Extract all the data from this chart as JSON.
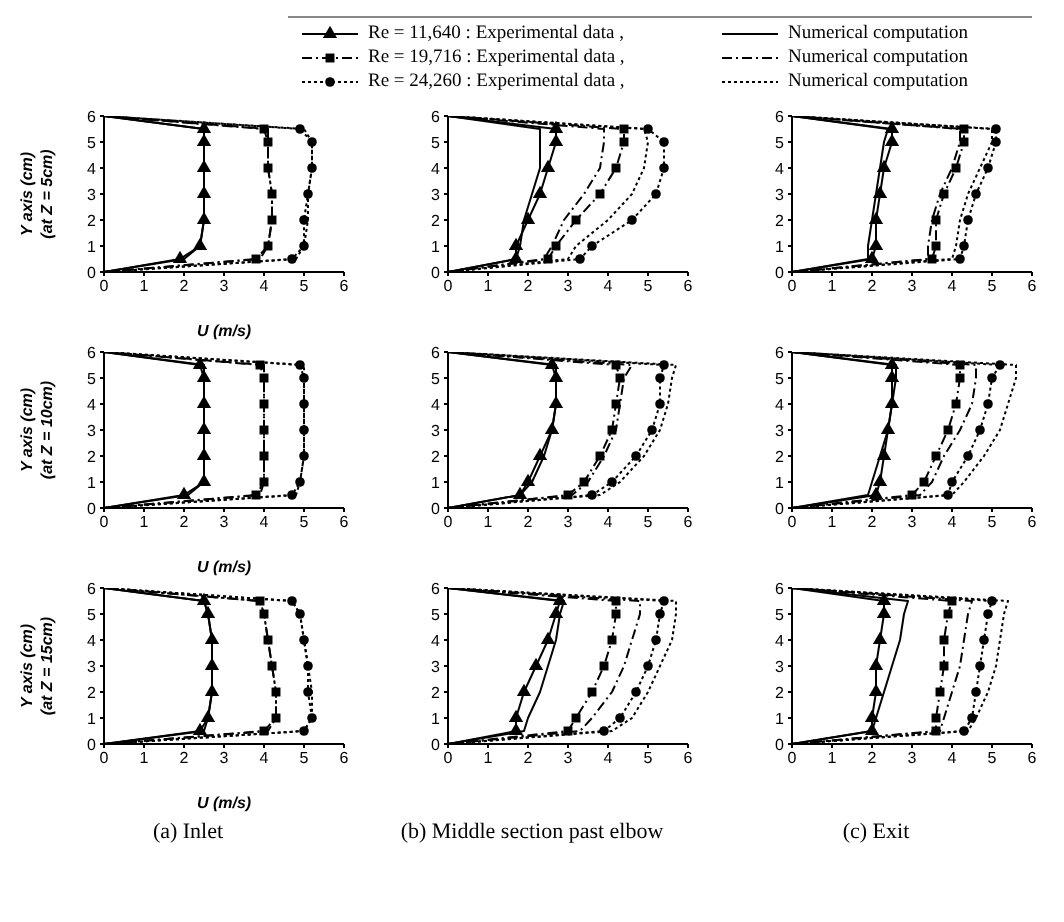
{
  "chart_data": [
    {
      "type": "line",
      "ylabel": "Y axis (cm)\n(at Z = 5cm)",
      "xlabel": "U (m/s)",
      "xlim": [
        0,
        6
      ],
      "ylim": [
        0,
        6
      ],
      "xticks": [
        0,
        1,
        2,
        3,
        4,
        5,
        6
      ],
      "yticks": [
        0,
        1,
        2,
        3,
        4,
        5,
        6
      ],
      "legend": "top",
      "series": [
        {
          "name": "Re = 11,640 : Experimental data ,",
          "color": "#000000",
          "marker": "triangle",
          "line_style": "solid",
          "x": [
            0,
            1.9,
            2.4,
            2.5,
            2.5,
            2.5,
            2.5,
            2.5,
            0
          ],
          "values": [
            0,
            0.5,
            1,
            2,
            3,
            4,
            5,
            5.5,
            6
          ]
        },
        {
          "name": "Numerical computation",
          "color": "#000000",
          "marker": "none",
          "line_style": "solid",
          "x": [
            0,
            2.0,
            2.4,
            2.5,
            2.5,
            2.5,
            2.5,
            2.5,
            0
          ],
          "values": [
            0,
            0.5,
            1,
            2,
            3,
            4,
            5,
            5.5,
            6
          ]
        },
        {
          "name": "Re = 19,716 : Experimental data ,",
          "color": "#000000",
          "marker": "square",
          "line_style": "dashed",
          "x": [
            0,
            3.8,
            4.1,
            4.2,
            4.2,
            4.1,
            4.1,
            4.0,
            0
          ],
          "values": [
            0,
            0.5,
            1,
            2,
            3,
            4,
            5,
            5.5,
            6
          ]
        },
        {
          "name": "Numerical computation",
          "color": "#000000",
          "marker": "none",
          "line_style": "dashed",
          "x": [
            0,
            3.9,
            4.1,
            4.2,
            4.2,
            4.1,
            4.1,
            4.1,
            0
          ],
          "values": [
            0,
            0.5,
            1,
            2,
            3,
            4,
            5,
            5.5,
            6
          ]
        },
        {
          "name": "Re = 24,260 : Experimental data ,",
          "color": "#000000",
          "marker": "circle",
          "line_style": "dotted",
          "x": [
            0,
            4.7,
            5.0,
            5.0,
            5.1,
            5.2,
            5.2,
            4.9,
            0
          ],
          "values": [
            0,
            0.5,
            1,
            2,
            3,
            4,
            5,
            5.5,
            6
          ]
        },
        {
          "name": "Numerical computation",
          "color": "#000000",
          "marker": "none",
          "line_style": "dotted",
          "x": [
            0,
            4.8,
            5.0,
            5.1,
            5.1,
            5.2,
            5.2,
            5.0,
            0
          ],
          "values": [
            0,
            0.5,
            1,
            2,
            3,
            4,
            5,
            5.5,
            6
          ]
        }
      ]
    },
    {
      "type": "line",
      "xlim": [
        0,
        6
      ],
      "ylim": [
        0,
        6
      ],
      "xticks": [
        0,
        1,
        2,
        3,
        4,
        5,
        6
      ],
      "yticks": [
        0,
        1,
        2,
        3,
        4,
        5,
        6
      ],
      "series": [
        {
          "color": "#000000",
          "marker": "triangle",
          "line_style": "solid",
          "x": [
            0,
            1.7,
            1.7,
            2.0,
            2.3,
            2.5,
            2.7,
            2.7,
            0
          ],
          "values": [
            0,
            0.5,
            1,
            2,
            3,
            4,
            5,
            5.5,
            6
          ]
        },
        {
          "color": "#000000",
          "marker": "none",
          "line_style": "solid",
          "x": [
            0,
            1.7,
            1.8,
            1.9,
            2.1,
            2.3,
            2.3,
            2.3,
            0
          ],
          "values": [
            0,
            0.5,
            1,
            2,
            3,
            4,
            5,
            5.5,
            6
          ]
        },
        {
          "color": "#000000",
          "marker": "square",
          "line_style": "dashed",
          "x": [
            0,
            2.5,
            2.7,
            3.2,
            3.8,
            4.2,
            4.4,
            4.4,
            0
          ],
          "values": [
            0,
            0.5,
            1,
            2,
            3,
            4,
            5,
            5.5,
            6
          ]
        },
        {
          "color": "#000000",
          "marker": "none",
          "line_style": "dashed",
          "x": [
            0,
            2.4,
            2.6,
            2.9,
            3.4,
            3.8,
            3.9,
            3.9,
            0
          ],
          "values": [
            0,
            0.5,
            1,
            2,
            3,
            4,
            5,
            5.5,
            6
          ]
        },
        {
          "color": "#000000",
          "marker": "circle",
          "line_style": "dotted",
          "x": [
            0,
            3.3,
            3.6,
            4.6,
            5.2,
            5.4,
            5.4,
            5.0,
            0
          ],
          "values": [
            0,
            0.5,
            1,
            2,
            3,
            4,
            5,
            5.5,
            6
          ]
        },
        {
          "color": "#000000",
          "marker": "none",
          "line_style": "dotted",
          "x": [
            0,
            3.0,
            3.2,
            4.0,
            4.6,
            4.9,
            5.0,
            4.9,
            0
          ],
          "values": [
            0,
            0.5,
            1,
            2,
            3,
            4,
            5,
            5.5,
            6
          ]
        }
      ]
    },
    {
      "type": "line",
      "xlim": [
        0,
        6
      ],
      "ylim": [
        0,
        6
      ],
      "xticks": [
        0,
        1,
        2,
        3,
        4,
        5,
        6
      ],
      "yticks": [
        0,
        1,
        2,
        3,
        4,
        5,
        6
      ],
      "series": [
        {
          "color": "#000000",
          "marker": "triangle",
          "line_style": "solid",
          "x": [
            0,
            2.0,
            2.1,
            2.1,
            2.2,
            2.3,
            2.5,
            2.5,
            0
          ],
          "values": [
            0,
            0.5,
            1,
            2,
            3,
            4,
            5,
            5.5,
            6
          ]
        },
        {
          "color": "#000000",
          "marker": "none",
          "line_style": "solid",
          "x": [
            0,
            1.9,
            1.9,
            2.0,
            2.1,
            2.2,
            2.3,
            2.4,
            0
          ],
          "values": [
            0,
            0.5,
            1,
            2,
            3,
            4,
            5,
            5.5,
            6
          ]
        },
        {
          "color": "#000000",
          "marker": "square",
          "line_style": "dashed",
          "x": [
            0,
            3.5,
            3.6,
            3.6,
            3.8,
            4.1,
            4.3,
            4.3,
            0
          ],
          "values": [
            0,
            0.5,
            1,
            2,
            3,
            4,
            5,
            5.5,
            6
          ]
        },
        {
          "color": "#000000",
          "marker": "none",
          "line_style": "dashed",
          "x": [
            0,
            3.4,
            3.4,
            3.5,
            3.7,
            4.0,
            4.2,
            4.2,
            0
          ],
          "values": [
            0,
            0.5,
            1,
            2,
            3,
            4,
            5,
            5.5,
            6
          ]
        },
        {
          "color": "#000000",
          "marker": "circle",
          "line_style": "dotted",
          "x": [
            0,
            4.2,
            4.3,
            4.4,
            4.6,
            4.9,
            5.1,
            5.1,
            0
          ],
          "values": [
            0,
            0.5,
            1,
            2,
            3,
            4,
            5,
            5.5,
            6
          ]
        },
        {
          "color": "#000000",
          "marker": "none",
          "line_style": "dotted",
          "x": [
            0,
            4.0,
            4.1,
            4.2,
            4.4,
            4.7,
            5.0,
            5.0,
            0
          ],
          "values": [
            0,
            0.5,
            1,
            2,
            3,
            4,
            5,
            5.5,
            6
          ]
        }
      ]
    },
    {
      "type": "line",
      "ylabel": "Y axis (cm)\n(at Z = 10cm)",
      "xlabel": "U (m/s)",
      "xlim": [
        0,
        6
      ],
      "ylim": [
        0,
        6
      ],
      "xticks": [
        0,
        1,
        2,
        3,
        4,
        5,
        6
      ],
      "yticks": [
        0,
        1,
        2,
        3,
        4,
        5,
        6
      ],
      "series": [
        {
          "color": "#000000",
          "marker": "triangle",
          "line_style": "solid",
          "x": [
            0,
            2.0,
            2.5,
            2.5,
            2.5,
            2.5,
            2.5,
            2.4,
            0
          ],
          "values": [
            0,
            0.5,
            1,
            2,
            3,
            4,
            5,
            5.5,
            6
          ]
        },
        {
          "color": "#000000",
          "marker": "none",
          "line_style": "solid",
          "x": [
            0,
            2.1,
            2.5,
            2.5,
            2.5,
            2.5,
            2.5,
            2.5,
            0
          ],
          "values": [
            0,
            0.5,
            1,
            2,
            3,
            4,
            5,
            5.5,
            6
          ]
        },
        {
          "color": "#000000",
          "marker": "square",
          "line_style": "dashed",
          "x": [
            0,
            3.8,
            4.0,
            4.0,
            4.0,
            4.0,
            4.0,
            3.9,
            0
          ],
          "values": [
            0,
            0.5,
            1,
            2,
            3,
            4,
            5,
            5.5,
            6
          ]
        },
        {
          "color": "#000000",
          "marker": "none",
          "line_style": "dashed",
          "x": [
            0,
            3.9,
            4.0,
            4.0,
            4.0,
            4.0,
            4.0,
            4.0,
            0
          ],
          "values": [
            0,
            0.5,
            1,
            2,
            3,
            4,
            5,
            5.5,
            6
          ]
        },
        {
          "color": "#000000",
          "marker": "circle",
          "line_style": "dotted",
          "x": [
            0,
            4.7,
            4.9,
            5.0,
            5.0,
            5.0,
            5.0,
            4.9,
            0
          ],
          "values": [
            0,
            0.5,
            1,
            2,
            3,
            4,
            5,
            5.5,
            6
          ]
        },
        {
          "color": "#000000",
          "marker": "none",
          "line_style": "dotted",
          "x": [
            0,
            4.8,
            4.9,
            5.0,
            5.0,
            5.0,
            5.0,
            5.0,
            0
          ],
          "values": [
            0,
            0.5,
            1,
            2,
            3,
            4,
            5,
            5.5,
            6
          ]
        }
      ]
    },
    {
      "type": "line",
      "xlim": [
        0,
        6
      ],
      "ylim": [
        0,
        6
      ],
      "xticks": [
        0,
        1,
        2,
        3,
        4,
        5,
        6
      ],
      "yticks": [
        0,
        1,
        2,
        3,
        4,
        5,
        6
      ],
      "series": [
        {
          "color": "#000000",
          "marker": "triangle",
          "line_style": "solid",
          "x": [
            0,
            1.8,
            2.0,
            2.3,
            2.6,
            2.7,
            2.7,
            2.6,
            0
          ],
          "values": [
            0,
            0.5,
            1,
            2,
            3,
            4,
            5,
            5.5,
            6
          ]
        },
        {
          "color": "#000000",
          "marker": "none",
          "line_style": "solid",
          "x": [
            0,
            1.8,
            2.1,
            2.4,
            2.6,
            2.7,
            2.7,
            2.7,
            0
          ],
          "values": [
            0,
            0.5,
            1,
            2,
            3,
            4,
            5,
            5.5,
            6
          ]
        },
        {
          "color": "#000000",
          "marker": "square",
          "line_style": "dashed",
          "x": [
            0,
            3.0,
            3.4,
            3.8,
            4.1,
            4.2,
            4.3,
            4.2,
            0
          ],
          "values": [
            0,
            0.5,
            1,
            2,
            3,
            4,
            5,
            5.5,
            6
          ]
        },
        {
          "color": "#000000",
          "marker": "none",
          "line_style": "dashed",
          "x": [
            0,
            3.1,
            3.5,
            3.9,
            4.2,
            4.3,
            4.4,
            4.6,
            0
          ],
          "values": [
            0,
            0.5,
            1,
            2,
            3,
            4,
            5,
            5.5,
            6
          ]
        },
        {
          "color": "#000000",
          "marker": "circle",
          "line_style": "dotted",
          "x": [
            0,
            3.6,
            4.1,
            4.7,
            5.1,
            5.3,
            5.3,
            5.4,
            0
          ],
          "values": [
            0,
            0.5,
            1,
            2,
            3,
            4,
            5,
            5.5,
            6
          ]
        },
        {
          "color": "#000000",
          "marker": "none",
          "line_style": "dotted",
          "x": [
            0,
            3.8,
            4.3,
            4.9,
            5.3,
            5.5,
            5.6,
            5.7,
            0
          ],
          "values": [
            0,
            0.5,
            1,
            2,
            3,
            4,
            5,
            5.5,
            6
          ]
        }
      ]
    },
    {
      "type": "line",
      "xlim": [
        0,
        6
      ],
      "ylim": [
        0,
        6
      ],
      "xticks": [
        0,
        1,
        2,
        3,
        4,
        5,
        6
      ],
      "yticks": [
        0,
        1,
        2,
        3,
        4,
        5,
        6
      ],
      "series": [
        {
          "color": "#000000",
          "marker": "triangle",
          "line_style": "solid",
          "x": [
            0,
            2.1,
            2.2,
            2.3,
            2.4,
            2.5,
            2.5,
            2.5,
            0
          ],
          "values": [
            0,
            0.5,
            1,
            2,
            3,
            4,
            5,
            5.5,
            6
          ]
        },
        {
          "color": "#000000",
          "marker": "none",
          "line_style": "solid",
          "x": [
            0,
            1.9,
            2.0,
            2.2,
            2.4,
            2.5,
            2.6,
            2.6,
            0
          ],
          "values": [
            0,
            0.5,
            1,
            2,
            3,
            4,
            5,
            5.5,
            6
          ]
        },
        {
          "color": "#000000",
          "marker": "square",
          "line_style": "dashed",
          "x": [
            0,
            3.0,
            3.3,
            3.6,
            3.9,
            4.1,
            4.2,
            4.2,
            0
          ],
          "values": [
            0,
            0.5,
            1,
            2,
            3,
            4,
            5,
            5.5,
            6
          ]
        },
        {
          "color": "#000000",
          "marker": "none",
          "line_style": "dashed",
          "x": [
            0,
            3.2,
            3.5,
            3.8,
            4.2,
            4.5,
            4.6,
            4.6,
            0
          ],
          "values": [
            0,
            0.5,
            1,
            2,
            3,
            4,
            5,
            5.5,
            6
          ]
        },
        {
          "color": "#000000",
          "marker": "circle",
          "line_style": "dotted",
          "x": [
            0,
            3.9,
            4.0,
            4.4,
            4.7,
            4.9,
            5.0,
            5.2,
            0
          ],
          "values": [
            0,
            0.5,
            1,
            2,
            3,
            4,
            5,
            5.5,
            6
          ]
        },
        {
          "color": "#000000",
          "marker": "none",
          "line_style": "dotted",
          "x": [
            0,
            4.0,
            4.3,
            4.8,
            5.2,
            5.4,
            5.6,
            5.6,
            0
          ],
          "values": [
            0,
            0.5,
            1,
            2,
            3,
            4,
            5,
            5.5,
            6
          ]
        }
      ]
    },
    {
      "type": "line",
      "ylabel": "Y axis (cm)\n(at Z = 15cm)",
      "xlabel": "U (m/s)",
      "xlim": [
        0,
        6
      ],
      "ylim": [
        0,
        6
      ],
      "xticks": [
        0,
        1,
        2,
        3,
        4,
        5,
        6
      ],
      "yticks": [
        0,
        1,
        2,
        3,
        4,
        5,
        6
      ],
      "annotations": [
        "(a) Inlet"
      ],
      "series": [
        {
          "color": "#000000",
          "marker": "triangle",
          "line_style": "solid",
          "x": [
            0,
            2.4,
            2.6,
            2.7,
            2.7,
            2.7,
            2.6,
            2.5,
            0
          ],
          "values": [
            0,
            0.5,
            1,
            2,
            3,
            4,
            5,
            5.5,
            6
          ]
        },
        {
          "color": "#000000",
          "marker": "none",
          "line_style": "solid",
          "x": [
            0,
            2.5,
            2.6,
            2.7,
            2.7,
            2.7,
            2.6,
            2.5,
            0
          ],
          "values": [
            0,
            0.5,
            1,
            2,
            3,
            4,
            5,
            5.5,
            6
          ]
        },
        {
          "color": "#000000",
          "marker": "square",
          "line_style": "dashed",
          "x": [
            0,
            4.0,
            4.3,
            4.3,
            4.2,
            4.1,
            4.0,
            3.9,
            0
          ],
          "values": [
            0,
            0.5,
            1,
            2,
            3,
            4,
            5,
            5.5,
            6
          ]
        },
        {
          "color": "#000000",
          "marker": "none",
          "line_style": "dashed",
          "x": [
            0,
            4.1,
            4.3,
            4.3,
            4.2,
            4.1,
            4.0,
            3.9,
            0
          ],
          "values": [
            0,
            0.5,
            1,
            2,
            3,
            4,
            5,
            5.5,
            6
          ]
        },
        {
          "color": "#000000",
          "marker": "circle",
          "line_style": "dotted",
          "x": [
            0,
            5.0,
            5.2,
            5.1,
            5.1,
            5.0,
            4.9,
            4.7,
            0
          ],
          "values": [
            0,
            0.5,
            1,
            2,
            3,
            4,
            5,
            5.5,
            6
          ]
        },
        {
          "color": "#000000",
          "marker": "none",
          "line_style": "dotted",
          "x": [
            0,
            5.0,
            5.2,
            5.2,
            5.1,
            5.0,
            4.9,
            4.7,
            0
          ],
          "values": [
            0,
            0.5,
            1,
            2,
            3,
            4,
            5,
            5.5,
            6
          ]
        }
      ]
    },
    {
      "type": "line",
      "xlim": [
        0,
        6
      ],
      "ylim": [
        0,
        6
      ],
      "xticks": [
        0,
        1,
        2,
        3,
        4,
        5,
        6
      ],
      "yticks": [
        0,
        1,
        2,
        3,
        4,
        5,
        6
      ],
      "annotations": [
        "(b) Middle section past elbow"
      ],
      "series": [
        {
          "color": "#000000",
          "marker": "triangle",
          "line_style": "solid",
          "x": [
            0,
            1.7,
            1.7,
            1.9,
            2.2,
            2.5,
            2.7,
            2.8,
            0
          ],
          "values": [
            0,
            0.5,
            1,
            2,
            3,
            4,
            5,
            5.5,
            6
          ]
        },
        {
          "color": "#000000",
          "marker": "none",
          "line_style": "solid",
          "x": [
            0,
            1.9,
            2.0,
            2.3,
            2.5,
            2.7,
            2.8,
            2.9,
            0
          ],
          "values": [
            0,
            0.5,
            1,
            2,
            3,
            4,
            5,
            5.5,
            6
          ]
        },
        {
          "color": "#000000",
          "marker": "square",
          "line_style": "dashed",
          "x": [
            0,
            3.0,
            3.2,
            3.6,
            3.9,
            4.1,
            4.2,
            4.2,
            0
          ],
          "values": [
            0,
            0.5,
            1,
            2,
            3,
            4,
            5,
            5.5,
            6
          ]
        },
        {
          "color": "#000000",
          "marker": "none",
          "line_style": "dashed",
          "x": [
            0,
            3.3,
            3.6,
            4.1,
            4.4,
            4.6,
            4.8,
            4.8,
            0
          ],
          "values": [
            0,
            0.5,
            1,
            2,
            3,
            4,
            5,
            5.5,
            6
          ]
        },
        {
          "color": "#000000",
          "marker": "circle",
          "line_style": "dotted",
          "x": [
            0,
            3.9,
            4.3,
            4.7,
            5.0,
            5.2,
            5.3,
            5.4,
            0
          ],
          "values": [
            0,
            0.5,
            1,
            2,
            3,
            4,
            5,
            5.5,
            6
          ]
        },
        {
          "color": "#000000",
          "marker": "none",
          "line_style": "dotted",
          "x": [
            0,
            4.1,
            4.6,
            5.0,
            5.3,
            5.6,
            5.7,
            5.7,
            0
          ],
          "values": [
            0,
            0.5,
            1,
            2,
            3,
            4,
            5,
            5.5,
            6
          ]
        }
      ]
    },
    {
      "type": "line",
      "xlim": [
        0,
        6
      ],
      "ylim": [
        0,
        6
      ],
      "xticks": [
        0,
        1,
        2,
        3,
        4,
        5,
        6
      ],
      "yticks": [
        0,
        1,
        2,
        3,
        4,
        5,
        6
      ],
      "annotations": [
        "(c) Exit"
      ],
      "series": [
        {
          "color": "#000000",
          "marker": "triangle",
          "line_style": "solid",
          "x": [
            0,
            2.0,
            2.0,
            2.1,
            2.1,
            2.2,
            2.3,
            2.3,
            0
          ],
          "values": [
            0,
            0.5,
            1,
            2,
            3,
            4,
            5,
            5.5,
            6
          ]
        },
        {
          "color": "#000000",
          "marker": "none",
          "line_style": "solid",
          "x": [
            0,
            2.0,
            2.1,
            2.3,
            2.5,
            2.7,
            2.8,
            2.9,
            0
          ],
          "values": [
            0,
            0.5,
            1,
            2,
            3,
            4,
            5,
            5.5,
            6
          ]
        },
        {
          "color": "#000000",
          "marker": "square",
          "line_style": "dashed",
          "x": [
            0,
            3.6,
            3.6,
            3.7,
            3.8,
            3.8,
            3.9,
            4.0,
            0
          ],
          "values": [
            0,
            0.5,
            1,
            2,
            3,
            4,
            5,
            5.5,
            6
          ]
        },
        {
          "color": "#000000",
          "marker": "none",
          "line_style": "dashed",
          "x": [
            0,
            3.7,
            3.8,
            4.0,
            4.2,
            4.3,
            4.4,
            4.5,
            0
          ],
          "values": [
            0,
            0.5,
            1,
            2,
            3,
            4,
            5,
            5.5,
            6
          ]
        },
        {
          "color": "#000000",
          "marker": "circle",
          "line_style": "dotted",
          "x": [
            0,
            4.3,
            4.5,
            4.6,
            4.7,
            4.8,
            4.9,
            5.0,
            0
          ],
          "values": [
            0,
            0.5,
            1,
            2,
            3,
            4,
            5,
            5.5,
            6
          ]
        },
        {
          "color": "#000000",
          "marker": "none",
          "line_style": "dotted",
          "x": [
            0,
            4.4,
            4.6,
            4.9,
            5.1,
            5.2,
            5.3,
            5.4,
            0
          ],
          "values": [
            0,
            0.5,
            1,
            2,
            3,
            4,
            5,
            5.5,
            6
          ]
        }
      ]
    }
  ]
}
